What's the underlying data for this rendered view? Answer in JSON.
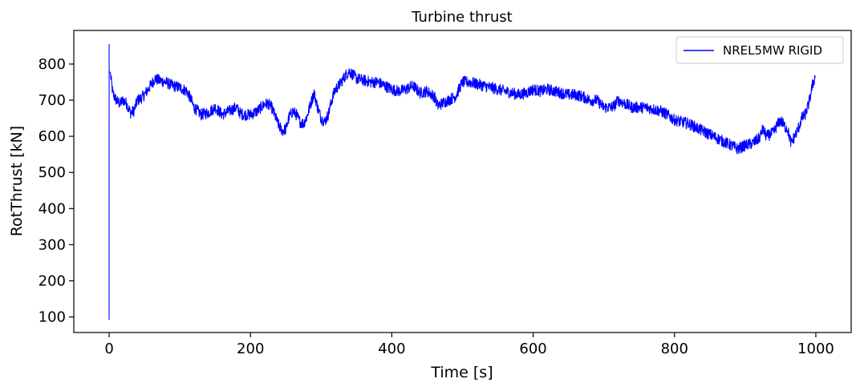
{
  "chart_data": {
    "type": "line",
    "title": "Turbine thrust",
    "xlabel": "Time [s]",
    "ylabel": "RotThrust [kN]",
    "xlim": [
      -50,
      1050
    ],
    "ylim": [
      57,
      893
    ],
    "xticks": [
      0,
      200,
      400,
      600,
      800,
      1000
    ],
    "yticks": [
      100,
      200,
      300,
      400,
      500,
      600,
      700,
      800
    ],
    "grid": false,
    "legend": {
      "position": "top-right"
    },
    "series": [
      {
        "name": "NREL5MW RIGID",
        "color": "#0000ff",
        "spike": {
          "x": 0,
          "min": 93,
          "max": 855
        },
        "noise_amplitude": 16,
        "points": [
          [
            2,
            770
          ],
          [
            5,
            720
          ],
          [
            10,
            700
          ],
          [
            15,
            690
          ],
          [
            20,
            700
          ],
          [
            25,
            690
          ],
          [
            30,
            665
          ],
          [
            35,
            670
          ],
          [
            40,
            700
          ],
          [
            45,
            705
          ],
          [
            50,
            715
          ],
          [
            55,
            730
          ],
          [
            60,
            745
          ],
          [
            65,
            760
          ],
          [
            70,
            755
          ],
          [
            80,
            750
          ],
          [
            90,
            740
          ],
          [
            100,
            735
          ],
          [
            110,
            725
          ],
          [
            115,
            705
          ],
          [
            120,
            680
          ],
          [
            125,
            670
          ],
          [
            130,
            660
          ],
          [
            140,
            665
          ],
          [
            150,
            680
          ],
          [
            155,
            670
          ],
          [
            160,
            660
          ],
          [
            170,
            670
          ],
          [
            180,
            680
          ],
          [
            185,
            665
          ],
          [
            190,
            660
          ],
          [
            200,
            660
          ],
          [
            210,
            670
          ],
          [
            220,
            690
          ],
          [
            225,
            690
          ],
          [
            230,
            680
          ],
          [
            235,
            655
          ],
          [
            240,
            630
          ],
          [
            245,
            615
          ],
          [
            250,
            620
          ],
          [
            255,
            655
          ],
          [
            260,
            670
          ],
          [
            265,
            660
          ],
          [
            270,
            640
          ],
          [
            275,
            635
          ],
          [
            280,
            655
          ],
          [
            285,
            690
          ],
          [
            290,
            720
          ],
          [
            295,
            680
          ],
          [
            300,
            650
          ],
          [
            305,
            640
          ],
          [
            310,
            660
          ],
          [
            315,
            700
          ],
          [
            320,
            730
          ],
          [
            325,
            740
          ],
          [
            330,
            755
          ],
          [
            335,
            770
          ],
          [
            340,
            780
          ],
          [
            345,
            770
          ],
          [
            350,
            760
          ],
          [
            360,
            755
          ],
          [
            370,
            750
          ],
          [
            380,
            750
          ],
          [
            390,
            740
          ],
          [
            400,
            730
          ],
          [
            410,
            725
          ],
          [
            420,
            730
          ],
          [
            430,
            740
          ],
          [
            440,
            720
          ],
          [
            450,
            725
          ],
          [
            460,
            710
          ],
          [
            465,
            685
          ],
          [
            470,
            690
          ],
          [
            480,
            700
          ],
          [
            490,
            710
          ],
          [
            500,
            750
          ],
          [
            510,
            750
          ],
          [
            520,
            745
          ],
          [
            530,
            740
          ],
          [
            540,
            735
          ],
          [
            550,
            730
          ],
          [
            560,
            725
          ],
          [
            570,
            720
          ],
          [
            580,
            715
          ],
          [
            590,
            720
          ],
          [
            600,
            730
          ],
          [
            610,
            725
          ],
          [
            620,
            730
          ],
          [
            630,
            725
          ],
          [
            640,
            720
          ],
          [
            650,
            715
          ],
          [
            660,
            715
          ],
          [
            670,
            710
          ],
          [
            680,
            700
          ],
          [
            690,
            700
          ],
          [
            700,
            680
          ],
          [
            710,
            680
          ],
          [
            715,
            685
          ],
          [
            720,
            700
          ],
          [
            730,
            690
          ],
          [
            740,
            680
          ],
          [
            750,
            680
          ],
          [
            760,
            680
          ],
          [
            770,
            675
          ],
          [
            780,
            670
          ],
          [
            790,
            660
          ],
          [
            800,
            645
          ],
          [
            810,
            640
          ],
          [
            820,
            635
          ],
          [
            830,
            625
          ],
          [
            840,
            615
          ],
          [
            850,
            605
          ],
          [
            860,
            595
          ],
          [
            870,
            585
          ],
          [
            880,
            575
          ],
          [
            890,
            565
          ],
          [
            900,
            575
          ],
          [
            910,
            580
          ],
          [
            920,
            595
          ],
          [
            925,
            620
          ],
          [
            930,
            600
          ],
          [
            940,
            610
          ],
          [
            945,
            630
          ],
          [
            950,
            645
          ],
          [
            955,
            630
          ],
          [
            960,
            620
          ],
          [
            965,
            580
          ],
          [
            970,
            600
          ],
          [
            975,
            620
          ],
          [
            980,
            650
          ],
          [
            985,
            660
          ],
          [
            990,
            690
          ],
          [
            995,
            740
          ],
          [
            999,
            765
          ]
        ]
      }
    ]
  }
}
